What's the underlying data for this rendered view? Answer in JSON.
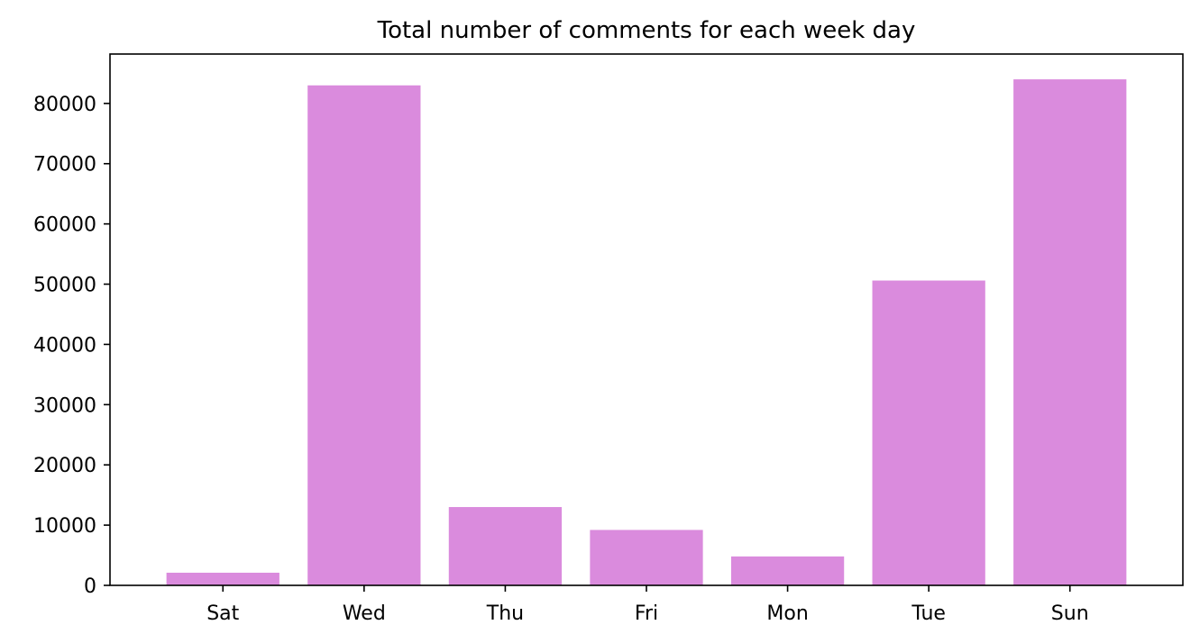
{
  "chart_data": {
    "type": "bar",
    "title": "Total number of comments for each week day",
    "xlabel": "",
    "ylabel": "",
    "categories": [
      "Sat",
      "Wed",
      "Thu",
      "Fri",
      "Mon",
      "Tue",
      "Sun"
    ],
    "values": [
      2100,
      83000,
      13000,
      9200,
      4800,
      50600,
      84000
    ],
    "ylim": [
      0,
      88200
    ],
    "yticks": [
      0,
      10000,
      20000,
      30000,
      40000,
      50000,
      60000,
      70000,
      80000
    ],
    "bar_color": "#da8bdd",
    "grid": false,
    "legend": "none"
  }
}
